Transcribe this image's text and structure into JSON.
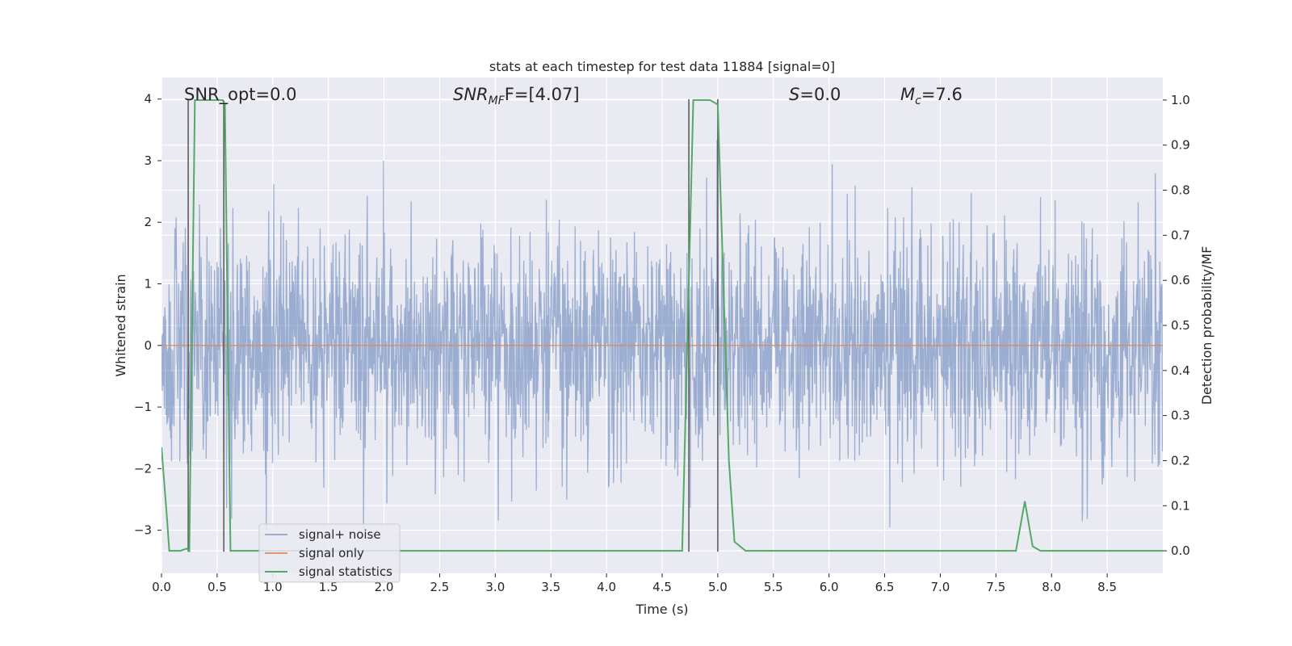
{
  "chart_data": {
    "type": "line",
    "title": "stats at each timestep for test data 11884 [signal=0]",
    "xlabel": "Time (s)",
    "ylabel_left": "Whitened strain",
    "ylabel_right": "Detection probability/MF",
    "xlim": [
      0,
      9.0
    ],
    "ylim_left": [
      -3.7,
      4.35
    ],
    "ylim_right": [
      -0.05,
      1.05
    ],
    "xticks": [
      "0.0",
      "0.5",
      "1.0",
      "1.5",
      "2.0",
      "2.5",
      "3.0",
      "3.5",
      "4.0",
      "4.5",
      "5.0",
      "5.5",
      "6.0",
      "6.5",
      "7.0",
      "7.5",
      "8.0",
      "8.5"
    ],
    "yticks_left": [
      "−3",
      "−2",
      "−1",
      "0",
      "1",
      "2",
      "3",
      "4"
    ],
    "yticks_right": [
      "0.0",
      "0.1",
      "0.2",
      "0.3",
      "0.4",
      "0.5",
      "0.6",
      "0.7",
      "0.8",
      "0.9",
      "1.0"
    ],
    "grid": true,
    "legend_placement": "lower-left",
    "annotations": {
      "snr_opt": "SNR_opt=0.0",
      "snr_mf_main": "SNR",
      "snr_mf_sub": "MF",
      "snr_mf_rest": "F=[4.07]",
      "s_main": "S",
      "s_rest": "=0.0",
      "mc_main": "M",
      "mc_sub": "c",
      "mc_rest": "=7.6"
    },
    "series": [
      {
        "name": "signal+ noise",
        "color": "#4c72b0",
        "note_values": "whitened strain noise, approx. zero mean, unit variance, range about -3.4 to 4.0"
      },
      {
        "name": "signal only",
        "color": "#dd8452",
        "x": [
          0,
          9.0
        ],
        "y": [
          0,
          0
        ]
      },
      {
        "name": "signal statistics",
        "color": "#55a868",
        "axis": "right",
        "x": [
          0.0,
          0.05,
          0.07,
          0.17,
          0.23,
          0.25,
          0.3,
          0.55,
          0.57,
          0.62,
          4.0,
          4.68,
          4.78,
          4.93,
          5.0,
          5.1,
          5.15,
          5.25,
          7.6,
          7.68,
          7.76,
          7.83,
          7.9,
          9.0
        ],
        "y": [
          0.23,
          0.07,
          0.0,
          0.0,
          0.005,
          0.0,
          1.0,
          1.0,
          0.99,
          0.0,
          0.0,
          0.0,
          1.0,
          1.0,
          0.99,
          0.2,
          0.02,
          0.0,
          0.0,
          0.0,
          0.11,
          0.01,
          0.0,
          0.0
        ]
      }
    ],
    "vertical_markers": [
      {
        "x": 0.24,
        "y_from": -3.35,
        "y_to": 4.0
      },
      {
        "x": 0.56,
        "y_from": -3.35,
        "y_to": 3.98
      },
      {
        "x": 4.74,
        "y_from": -3.35,
        "y_to": 4.0
      },
      {
        "x": 5.0,
        "y_from": -3.35,
        "y_to": 4.0
      }
    ],
    "marker_color": "#555555"
  }
}
